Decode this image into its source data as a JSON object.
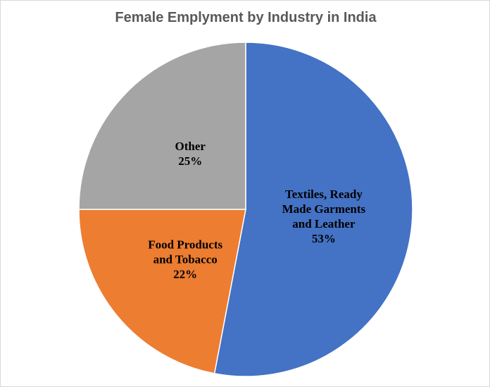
{
  "chart_data": {
    "type": "pie",
    "title": "Female Emplyment by Industry in India",
    "categories": [
      "Textiles, Ready Made Garments and Leather",
      "Food Products and Tobacco",
      "Other"
    ],
    "values": [
      53,
      22,
      25
    ],
    "value_labels": [
      "53%",
      "22%",
      "25%"
    ],
    "colors": [
      "#4472c4",
      "#ed7d31",
      "#a5a5a5"
    ]
  }
}
